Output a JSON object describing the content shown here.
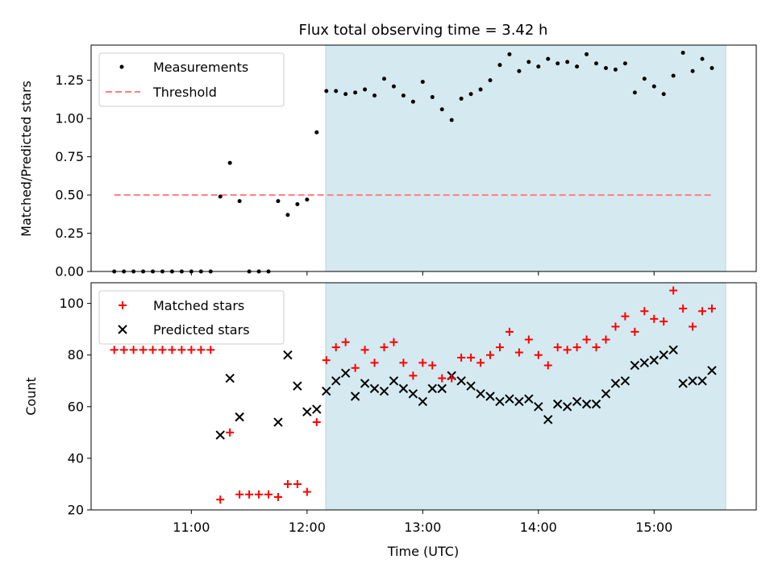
{
  "chart_data": [
    {
      "type": "scatter",
      "title": "Flux total observing time = 3.42 h",
      "ylabel": "Matched/Predicted stars",
      "xlim": [
        "10:08",
        "15:53"
      ],
      "ylim": [
        0,
        1.48
      ],
      "yticks": [
        "0.00",
        "0.25",
        "0.50",
        "0.75",
        "1.00",
        "1.25"
      ],
      "grid": false,
      "legend_position": "upper-left",
      "shaded_interval": [
        "12:05",
        "15:31"
      ],
      "shade_color": "#d4eaf0",
      "series": [
        {
          "name": "Measurements",
          "marker": "dot",
          "color": "#000000",
          "x": [
            "10:20",
            "10:25",
            "10:30",
            "10:35",
            "10:40",
            "10:45",
            "10:50",
            "10:55",
            "11:00",
            "11:05",
            "11:10",
            "11:15",
            "11:20",
            "11:25",
            "11:30",
            "11:35",
            "11:40",
            "11:45",
            "11:50",
            "11:55",
            "12:00",
            "12:05",
            "12:10",
            "12:15",
            "12:20",
            "12:25",
            "12:30",
            "12:35",
            "12:40",
            "12:45",
            "12:50",
            "12:55",
            "13:00",
            "13:05",
            "13:10",
            "13:15",
            "13:20",
            "13:25",
            "13:30",
            "13:35",
            "13:40",
            "13:45",
            "13:50",
            "13:55",
            "14:00",
            "14:05",
            "14:10",
            "14:15",
            "14:20",
            "14:25",
            "14:30",
            "14:35",
            "14:40",
            "14:45",
            "14:50",
            "14:55",
            "15:00",
            "15:05",
            "15:10",
            "15:15",
            "15:20",
            "15:25",
            "15:30"
          ],
          "y": [
            0,
            0,
            0,
            0,
            0,
            0,
            0,
            0,
            0,
            0,
            0,
            0.49,
            0.71,
            0.46,
            0,
            0,
            0,
            0.46,
            0.37,
            0.44,
            0.47,
            0.91,
            1.18,
            1.18,
            1.16,
            1.17,
            1.19,
            1.15,
            1.26,
            1.21,
            1.15,
            1.11,
            1.24,
            1.14,
            1.06,
            0.99,
            1.13,
            1.16,
            1.19,
            1.25,
            1.35,
            1.42,
            1.31,
            1.37,
            1.34,
            1.39,
            1.36,
            1.37,
            1.34,
            1.42,
            1.36,
            1.33,
            1.32,
            1.36,
            1.17,
            1.26,
            1.21,
            1.16,
            1.28,
            1.43,
            1.31,
            1.39,
            1.33
          ]
        },
        {
          "name": "Threshold",
          "type": "line",
          "style": "dashed",
          "color": "#ff7f7f",
          "x": [
            "10:20",
            "15:31"
          ],
          "y": [
            0.5,
            0.5
          ]
        }
      ]
    },
    {
      "type": "scatter",
      "xlabel": "Time (UTC)",
      "ylabel": "Count",
      "xlim": [
        "10:08",
        "15:53"
      ],
      "xticks": [
        "11:00",
        "12:00",
        "13:00",
        "14:00",
        "15:00"
      ],
      "ylim": [
        20,
        108
      ],
      "yticks": [
        "20",
        "40",
        "60",
        "80",
        "100"
      ],
      "grid": false,
      "legend_position": "upper-left",
      "shaded_interval": [
        "12:05",
        "15:31"
      ],
      "shade_color": "#d4eaf0",
      "x": [
        "10:20",
        "10:25",
        "10:30",
        "10:35",
        "10:40",
        "10:45",
        "10:50",
        "10:55",
        "11:00",
        "11:05",
        "11:10",
        "11:15",
        "11:20",
        "11:25",
        "11:30",
        "11:35",
        "11:40",
        "11:45",
        "11:50",
        "11:55",
        "12:00",
        "12:05",
        "12:10",
        "12:15",
        "12:20",
        "12:25",
        "12:30",
        "12:35",
        "12:40",
        "12:45",
        "12:50",
        "12:55",
        "13:00",
        "13:05",
        "13:10",
        "13:15",
        "13:20",
        "13:25",
        "13:30",
        "13:35",
        "13:40",
        "13:45",
        "13:50",
        "13:55",
        "14:00",
        "14:05",
        "14:10",
        "14:15",
        "14:20",
        "14:25",
        "14:30",
        "14:35",
        "14:40",
        "14:45",
        "14:50",
        "14:55",
        "15:00",
        "15:05",
        "15:10",
        "15:15",
        "15:20",
        "15:25",
        "15:30"
      ],
      "series": [
        {
          "name": "Matched stars",
          "marker": "plus",
          "color": "#ff0000",
          "y": [
            82,
            82,
            82,
            82,
            82,
            82,
            82,
            82,
            82,
            82,
            82,
            24,
            50,
            26,
            26,
            26,
            26,
            25,
            30,
            30,
            27,
            54,
            78,
            83,
            85,
            75,
            82,
            77,
            83,
            85,
            77,
            72,
            77,
            76,
            71,
            71,
            79,
            79,
            77,
            80,
            83,
            89,
            81,
            86,
            80,
            76,
            83,
            82,
            83,
            86,
            83,
            86,
            91,
            95,
            89,
            97,
            94,
            93,
            105,
            98,
            91,
            97,
            98
          ]
        },
        {
          "name": "Predicted stars",
          "marker": "x",
          "color": "#000000",
          "y": [
            null,
            null,
            null,
            null,
            null,
            null,
            null,
            null,
            null,
            null,
            null,
            49,
            71,
            56,
            null,
            null,
            null,
            54,
            80,
            68,
            58,
            59,
            66,
            70,
            73,
            64,
            69,
            67,
            66,
            70,
            67,
            65,
            62,
            67,
            67,
            72,
            70,
            68,
            65,
            64,
            62,
            63,
            62,
            63,
            60,
            55,
            61,
            60,
            62,
            61,
            61,
            65,
            69,
            70,
            76,
            77,
            78,
            80,
            82,
            69,
            70,
            70,
            74
          ]
        }
      ]
    }
  ]
}
